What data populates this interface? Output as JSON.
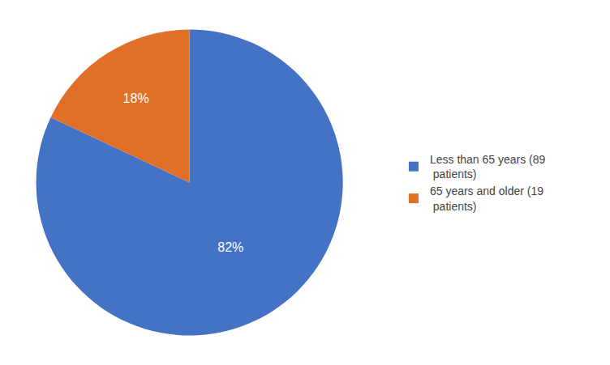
{
  "chart_data": {
    "type": "pie",
    "categories": [
      "Less than 65 years (89\n patients)",
      "65 years and older (19\n patients)"
    ],
    "values": [
      82,
      18
    ],
    "value_labels": [
      "82%",
      "18%"
    ],
    "colors": [
      "#4472C4",
      "#E07028"
    ],
    "data_labels": true,
    "legend": "right"
  }
}
